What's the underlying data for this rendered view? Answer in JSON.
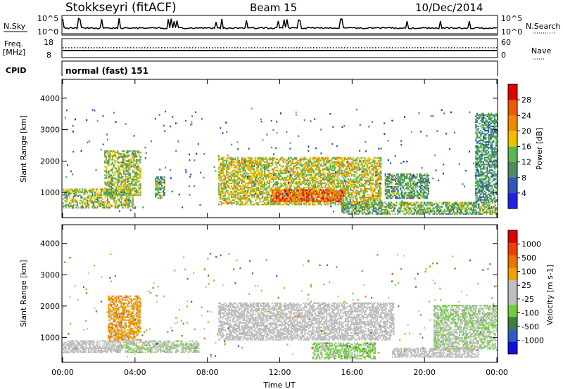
{
  "header": {
    "station": "Stokkseyri (fitACF)",
    "beam": "Beam 15",
    "date": "10/Dec/2014"
  },
  "top_panels": {
    "nsky_label": "N.Sky",
    "nsky_ticks": [
      "10^5",
      "10^0"
    ],
    "nsky_ticks_right": [
      "10^5",
      "10^0"
    ],
    "nsearch_label": "N.Search",
    "freq_label_1": "Freq.",
    "freq_label_2": "[MHz]",
    "freq_ticks": [
      "18",
      "8"
    ],
    "nave_ticks": [
      "60",
      "0"
    ],
    "nave_label": "Nave",
    "cpid_label": "CPID",
    "cpid_value": "normal (fast) 151"
  },
  "colors": {
    "power_scale": [
      "#1f1fe6",
      "#2e56b8",
      "#4f8a63",
      "#57b857",
      "#f0c000",
      "#f08a00",
      "#ef5a00",
      "#e60000"
    ],
    "velocity_scale": [
      "#1010e0",
      "#2c5dc4",
      "#3f7d3f",
      "#6ecf3a",
      "#bfbfbf",
      "#bfbfbf",
      "#f0a000",
      "#f07000",
      "#f04000",
      "#e00000"
    ]
  },
  "chart_data": [
    {
      "type": "heatmap",
      "title": "",
      "xlabel": "Time UT",
      "ylabel": "Slant Range [km]",
      "x_ticks": [
        "00:00",
        "04:00",
        "08:00",
        "12:00",
        "16:00",
        "20:00",
        "00:00"
      ],
      "x_range_hours": [
        0,
        24
      ],
      "y_ticks": [
        "1000",
        "2000",
        "3000",
        "4000"
      ],
      "ylim": [
        200,
        4600
      ],
      "colorbar": {
        "label": "Power [dB]",
        "range": [
          0,
          30
        ],
        "tick_labels": [
          "4",
          "8",
          "12",
          "16",
          "20",
          "24",
          "28"
        ]
      },
      "regions": [
        {
          "t0": 0.0,
          "t1": 3.9,
          "r0": 500,
          "r1": 1100,
          "value": 14
        },
        {
          "t0": 2.3,
          "t1": 4.3,
          "r0": 900,
          "r1": 2300,
          "value": 14
        },
        {
          "t0": 5.1,
          "t1": 5.6,
          "r0": 800,
          "r1": 1500,
          "value": 12
        },
        {
          "t0": 8.6,
          "t1": 17.6,
          "r0": 600,
          "r1": 2100,
          "value": 16
        },
        {
          "t0": 11.5,
          "t1": 15.5,
          "r0": 700,
          "r1": 1100,
          "value": 24
        },
        {
          "t0": 15.4,
          "t1": 24.0,
          "r0": 300,
          "r1": 700,
          "value": 12
        },
        {
          "t0": 17.8,
          "t1": 20.2,
          "r0": 800,
          "r1": 1600,
          "value": 11
        },
        {
          "t0": 22.8,
          "t1": 24.0,
          "r0": 700,
          "r1": 3500,
          "value": 10
        }
      ]
    },
    {
      "type": "heatmap",
      "title": "",
      "xlabel": "Time UT",
      "ylabel": "Slant Range [km]",
      "x_ticks": [
        "00:00",
        "04:00",
        "08:00",
        "12:00",
        "16:00",
        "20:00",
        "00:00"
      ],
      "x_range_hours": [
        0,
        24
      ],
      "y_ticks": [
        "1000",
        "2000",
        "3000",
        "4000"
      ],
      "ylim": [
        200,
        4600
      ],
      "colorbar": {
        "label": "Velocity [m s-1]",
        "range": [
          -1200,
          1200
        ],
        "tick_labels": [
          "1000",
          "500",
          "100",
          "25",
          "-25",
          "-100",
          "-500",
          "-1000"
        ]
      },
      "regions": [
        {
          "t0": 0.0,
          "t1": 3.2,
          "r0": 500,
          "r1": 900,
          "value": 0
        },
        {
          "t0": 2.5,
          "t1": 4.3,
          "r0": 900,
          "r1": 2300,
          "value": 350
        },
        {
          "t0": 3.0,
          "t1": 7.5,
          "r0": 500,
          "r1": 900,
          "value": -150
        },
        {
          "t0": 8.6,
          "t1": 18.3,
          "r0": 900,
          "r1": 2100,
          "value": 0
        },
        {
          "t0": 13.8,
          "t1": 17.3,
          "r0": 300,
          "r1": 800,
          "value": -300
        },
        {
          "t0": 18.2,
          "t1": 23.0,
          "r0": 350,
          "r1": 650,
          "value": 20
        },
        {
          "t0": 20.5,
          "t1": 24.0,
          "r0": 600,
          "r1": 2000,
          "value": -200
        }
      ]
    }
  ]
}
